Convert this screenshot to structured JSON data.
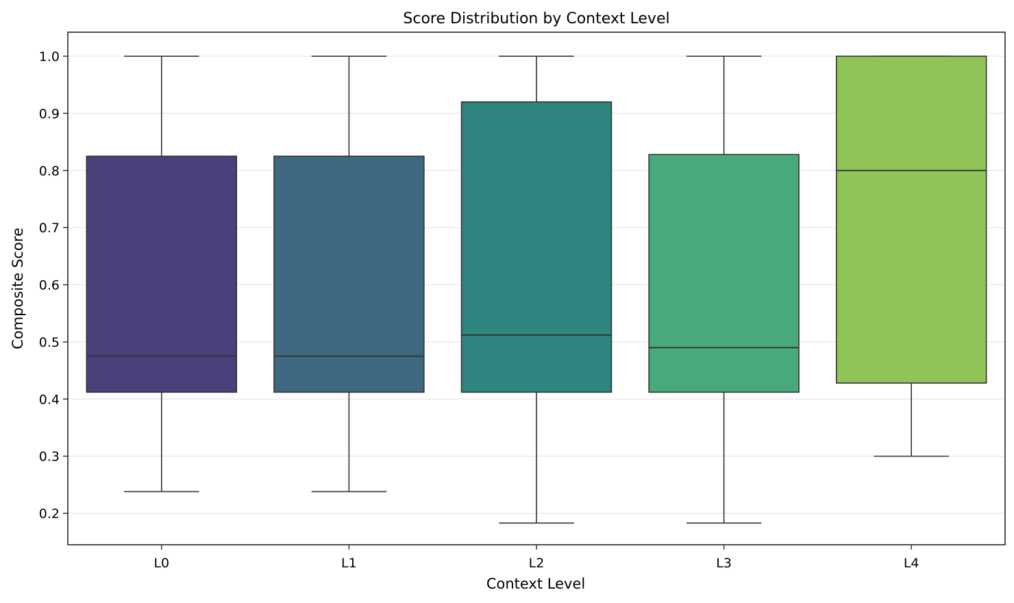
{
  "chart_data": {
    "type": "box",
    "title": "Score Distribution by Context Level",
    "xlabel": "Context Level",
    "ylabel": "Composite Score",
    "ylim": [
      0.145,
      1.042
    ],
    "yticks": [
      0.2,
      0.3,
      0.4,
      0.5,
      0.6,
      0.7,
      0.8,
      0.9,
      1.0
    ],
    "ytick_labels": [
      "0.2",
      "0.3",
      "0.4",
      "0.5",
      "0.6",
      "0.7",
      "0.8",
      "0.9",
      "1.0"
    ],
    "grid": "horizontal",
    "categories": [
      "L0",
      "L1",
      "L2",
      "L3",
      "L4"
    ],
    "boxes": [
      {
        "category": "L0",
        "whisker_low": 0.238,
        "q1": 0.412,
        "median": 0.475,
        "q3": 0.825,
        "whisker_high": 1.0,
        "color": "#48417a"
      },
      {
        "category": "L1",
        "whisker_low": 0.238,
        "q1": 0.412,
        "median": 0.475,
        "q3": 0.825,
        "whisker_high": 1.0,
        "color": "#3e6880"
      },
      {
        "category": "L2",
        "whisker_low": 0.183,
        "q1": 0.412,
        "median": 0.512,
        "q3": 0.92,
        "whisker_high": 1.0,
        "color": "#2e847e"
      },
      {
        "category": "L3",
        "whisker_low": 0.183,
        "q1": 0.412,
        "median": 0.49,
        "q3": 0.828,
        "whisker_high": 1.0,
        "color": "#48aa7b"
      },
      {
        "category": "L4",
        "whisker_low": 0.3,
        "q1": 0.428,
        "median": 0.8,
        "q3": 1.0,
        "whisker_high": 1.0,
        "color": "#90c458"
      }
    ]
  }
}
